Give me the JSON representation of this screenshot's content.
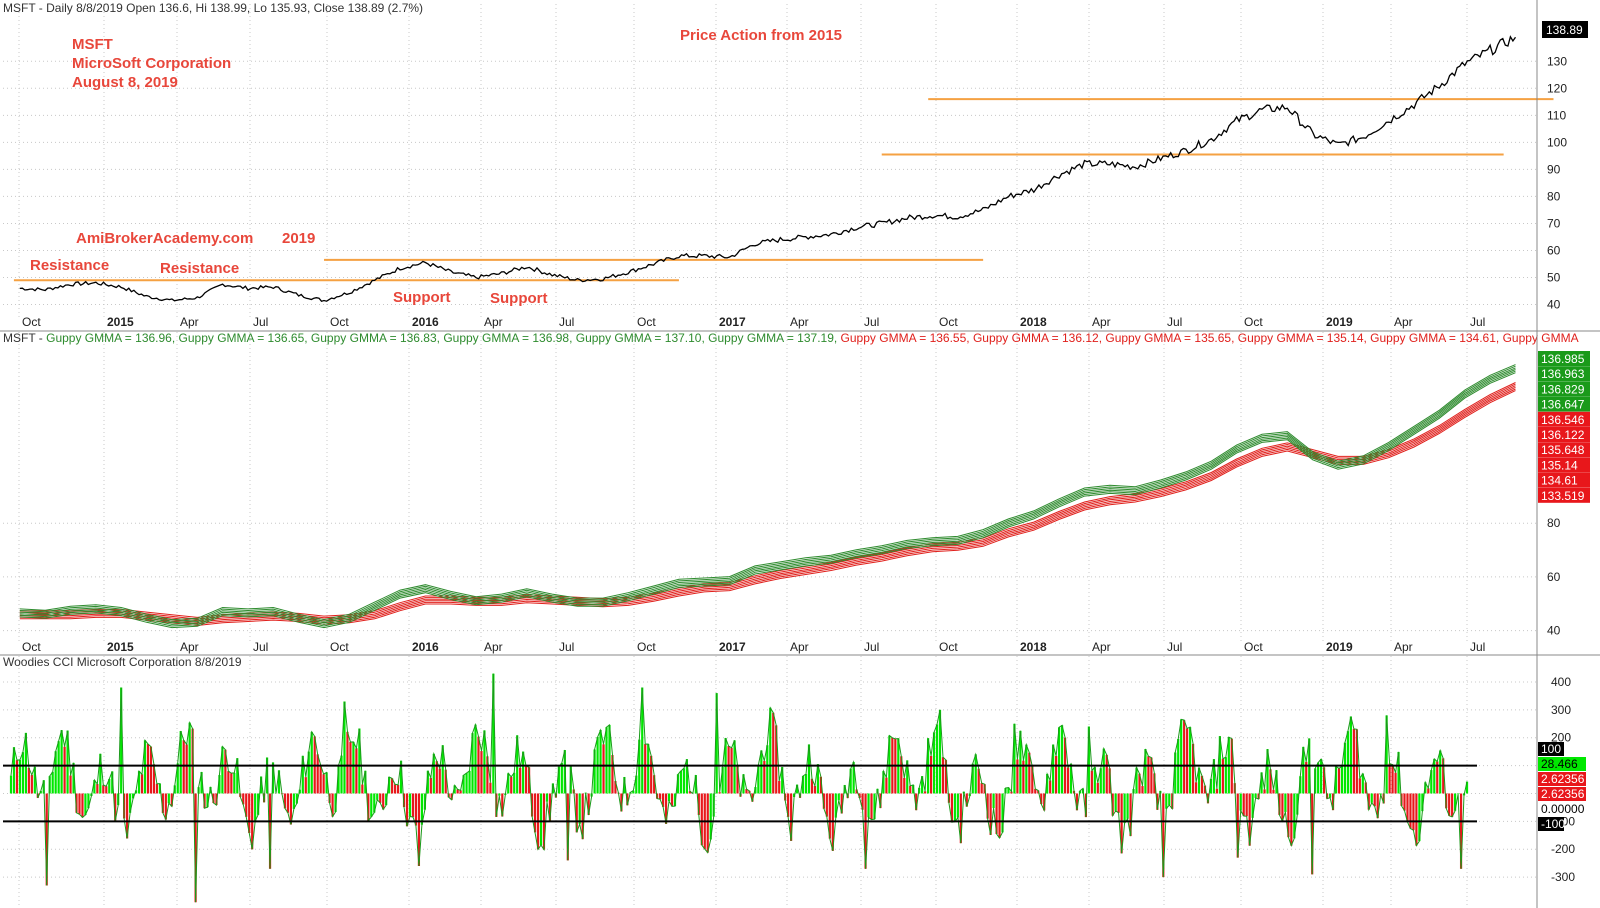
{
  "chart_data": [
    {
      "type": "line",
      "title": "MSFT - Daily 8/8/2019 Open 136.6, Hi 138.99, Lo 135.93, Close 138.89 (2.7%)",
      "annotations": {
        "symbol": "MSFT",
        "company": "MicroSoft Corporation",
        "date": "August 8, 2019",
        "headline": "Price Action from 2015",
        "site": "AmiBrokerAcademy.com",
        "year": "2019",
        "resistance_1": "Resistance",
        "resistance_2": "Resistance",
        "support_1": "Support",
        "support_2": "Support"
      },
      "x_ticks": [
        "Oct",
        "2015",
        "Apr",
        "Jul",
        "Oct",
        "2016",
        "Apr",
        "Jul",
        "Oct",
        "2017",
        "Apr",
        "Jul",
        "Oct",
        "2018",
        "Apr",
        "Jul",
        "Oct",
        "2019",
        "Apr",
        "Jul"
      ],
      "x_ticks_bold": [
        "2015",
        "2016",
        "2017",
        "2018",
        "2019"
      ],
      "y_ticks": [
        40,
        50,
        60,
        70,
        80,
        90,
        100,
        110,
        120,
        130
      ],
      "ylim": [
        36.5,
        146
      ],
      "x": [
        "2014-09",
        "2014-10",
        "2014-11",
        "2014-12",
        "2015-01",
        "2015-02",
        "2015-03",
        "2015-04",
        "2015-05",
        "2015-06",
        "2015-07",
        "2015-08",
        "2015-09",
        "2015-10",
        "2015-11",
        "2015-12",
        "2016-01",
        "2016-02",
        "2016-03",
        "2016-04",
        "2016-05",
        "2016-06",
        "2016-07",
        "2016-08",
        "2016-09",
        "2016-10",
        "2016-11",
        "2016-12",
        "2017-01",
        "2017-02",
        "2017-03",
        "2017-04",
        "2017-05",
        "2017-06",
        "2017-07",
        "2017-08",
        "2017-09",
        "2017-10",
        "2017-11",
        "2017-12",
        "2018-01",
        "2018-02",
        "2018-03",
        "2018-04",
        "2018-05",
        "2018-06",
        "2018-07",
        "2018-08",
        "2018-09",
        "2018-10",
        "2018-11",
        "2018-12",
        "2019-01",
        "2019-02",
        "2019-03",
        "2019-04",
        "2019-05",
        "2019-06",
        "2019-07",
        "2019-08"
      ],
      "series": [
        {
          "color": "#000000",
          "values": [
            46,
            45.5,
            47.5,
            48,
            46.5,
            43,
            41.5,
            42.5,
            47.5,
            46,
            46.5,
            43.5,
            41.5,
            44.5,
            49,
            53.5,
            55.5,
            52,
            50,
            51.5,
            54,
            51,
            49,
            49.5,
            52,
            55,
            58,
            58,
            57.5,
            62.5,
            64,
            65,
            66,
            68.5,
            70,
            72,
            73,
            72.5,
            75,
            80,
            82.5,
            88,
            92,
            92,
            91,
            94,
            97,
            101,
            108,
            112,
            113,
            103,
            99,
            102,
            108,
            114,
            121,
            129,
            134,
            138.89
          ]
        }
      ],
      "levels": [
        {
          "from": "2014-09-08",
          "to": "2016-11-15",
          "value": 49,
          "color": "#f5a142"
        },
        {
          "from": "2015-09-15",
          "to": "2017-11-15",
          "value": 56.5,
          "color": "#f5a142"
        },
        {
          "from": "2017-07-15",
          "to": "2019-08-01",
          "value": 95.5,
          "color": "#f5a142"
        },
        {
          "from": "2017-09-10",
          "to": "2019-09-30",
          "value": 116,
          "color": "#f5a142"
        }
      ],
      "last_value_label": "138.89"
    },
    {
      "type": "line",
      "title": "MSFT - Guppy GMMA = 136.96, Guppy GMMA = 136.65, Guppy GMMA = 136.83, Guppy GMMA = 136.98, Guppy GMMA = 137.10, Guppy GMMA = 137.19, Guppy GMMA = 136.55, Guppy GMMA = 136.12, Guppy GMMA = 135.65, Guppy GMMA = 135.14, Guppy GMMA = 134.61, Guppy GMMA",
      "title_segments": [
        {
          "text": "MSFT - ",
          "color": "#333333"
        },
        {
          "text": "Guppy GMMA = 136.96, ",
          "color": "#2e8b2e"
        },
        {
          "text": "Guppy GMMA = 136.65, ",
          "color": "#2e8b2e"
        },
        {
          "text": "Guppy GMMA = 136.83, ",
          "color": "#2e8b2e"
        },
        {
          "text": "Guppy GMMA = 136.98, ",
          "color": "#2e8b2e"
        },
        {
          "text": "Guppy GMMA = 137.10, ",
          "color": "#2e8b2e"
        },
        {
          "text": "Guppy GMMA = 137.19, ",
          "color": "#2e8b2e"
        },
        {
          "text": "Guppy GMMA = 136.55, ",
          "color": "#e0201c"
        },
        {
          "text": "Guppy GMMA = 136.12, ",
          "color": "#e0201c"
        },
        {
          "text": "Guppy GMMA = 135.65, ",
          "color": "#e0201c"
        },
        {
          "text": "Guppy GMMA = 135.14, ",
          "color": "#e0201c"
        },
        {
          "text": "Guppy GMMA = 134.61, ",
          "color": "#e0201c"
        },
        {
          "text": "Guppy GMMA",
          "color": "#e0201c"
        }
      ],
      "x_ticks": [
        "Oct",
        "2015",
        "Apr",
        "Jul",
        "Oct",
        "2016",
        "Apr",
        "Jul",
        "Oct",
        "2017",
        "Apr",
        "Jul",
        "Oct",
        "2018",
        "Apr",
        "Jul",
        "Oct",
        "2019",
        "Apr",
        "Jul"
      ],
      "x_ticks_bold": [
        "2015",
        "2016",
        "2017",
        "2018",
        "2019"
      ],
      "y_ticks": [
        40,
        60,
        80
      ],
      "ylim": [
        36.5,
        146
      ],
      "short_term_color": "#2e8b2e",
      "long_term_color": "#e0201c",
      "short_term": [
        46,
        45.5,
        47,
        47.5,
        46.5,
        44,
        42,
        42.5,
        46.5,
        46,
        46.5,
        44,
        42,
        44,
        48.5,
        53,
        55,
        52.5,
        50.5,
        51.5,
        53.5,
        51.5,
        50,
        50,
        52,
        54.5,
        57,
        57.5,
        58,
        62,
        63.5,
        65,
        66,
        68,
        69.5,
        71.5,
        72.5,
        73,
        75.5,
        79.5,
        82.5,
        87,
        91,
        92,
        91.5,
        94,
        97,
        101,
        107,
        111,
        112,
        104.5,
        101,
        103,
        108,
        114,
        120,
        127.5,
        133,
        136.96
      ],
      "long_term": [
        46,
        46,
        46,
        46.5,
        46.5,
        45.5,
        44.5,
        43.5,
        44.5,
        45,
        45.5,
        45,
        44,
        44.5,
        46,
        49,
        51.5,
        51.5,
        51,
        51,
        52,
        51.5,
        51,
        50.5,
        51,
        52.5,
        54.5,
        56,
        56.5,
        59,
        61,
        62.5,
        64,
        66,
        67.5,
        69.5,
        71,
        71.5,
        73,
        76.5,
        79,
        83,
        86.5,
        88.5,
        89.5,
        91.5,
        94,
        97.5,
        102.5,
        106.5,
        108.5,
        106,
        103.5,
        103.5,
        106,
        110,
        115,
        121,
        126.5,
        131
      ],
      "value_labels": [
        {
          "text": "136.985",
          "bg": "#1a9a1a"
        },
        {
          "text": "136.963",
          "bg": "#1a9a1a"
        },
        {
          "text": "136.829",
          "bg": "#1a9a1a"
        },
        {
          "text": "136.647",
          "bg": "#1a9a1a"
        },
        {
          "text": "136.546",
          "bg": "#e8171b"
        },
        {
          "text": "136.122",
          "bg": "#e8171b"
        },
        {
          "text": "135.648",
          "bg": "#e8171b"
        },
        {
          "text": "135.14",
          "bg": "#e8171b"
        },
        {
          "text": "134.61",
          "bg": "#e8171b"
        },
        {
          "text": "133.519",
          "bg": "#e8171b"
        }
      ]
    },
    {
      "type": "bar",
      "title": "Woodies CCI  Microsoft Corporation 8/8/2019",
      "y_ticks": [
        -300,
        -200,
        -100,
        0,
        100,
        200,
        300,
        400
      ],
      "ylim": [
        -400,
        450
      ],
      "x_ticks": [
        "Oct",
        "2015",
        "Apr",
        "Jul",
        "Oct",
        "2016",
        "Apr",
        "Jul",
        "Oct",
        "2017",
        "Apr",
        "Jul",
        "Oct",
        "2018",
        "Apr",
        "Jul",
        "Oct",
        "2019",
        "Apr",
        "Jul"
      ],
      "bar_up_color": "#00e800",
      "bar_down_color": "#e8171b",
      "lines": [
        100,
        -100
      ],
      "line_values_sample": [
        -330,
        380,
        -390,
        -270,
        330,
        -260,
        430,
        -240,
        380,
        360,
        -170,
        -270,
        300,
        250,
        240,
        -300,
        -230,
        -290,
        280,
        -270
      ],
      "value_labels": [
        {
          "text": "100",
          "bg": "#000000",
          "fg": "#ffffff"
        },
        {
          "text": "28.466",
          "bg": "#00e800",
          "fg": "#000000"
        },
        {
          "text": "2.62356",
          "bg": "#e8171b",
          "fg": "#ffffff"
        },
        {
          "text": "2.62356",
          "bg": "#e8171b",
          "fg": "#ffffff"
        },
        {
          "text": "0.00000",
          "bg": "#ffffff",
          "fg": "#000000"
        },
        {
          "text": "-100",
          "bg": "#000000",
          "fg": "#ffffff"
        }
      ]
    }
  ]
}
